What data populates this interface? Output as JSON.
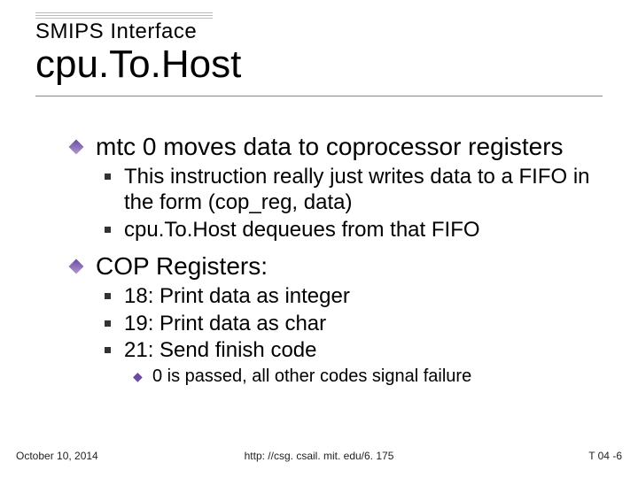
{
  "header": {
    "subtitle": "SMIPS Interface",
    "title": "cpu.To.Host"
  },
  "bullet1": {
    "text": "mtc 0 moves data to coprocessor registers",
    "sub": [
      "This instruction really just writes data to a FIFO in the form (cop_reg, data)",
      "cpu.To.Host dequeues from that FIFO"
    ]
  },
  "bullet2": {
    "text": "COP Registers:",
    "sub": [
      "18: Print data as integer",
      "19: Print data as char",
      "21: Send finish code"
    ],
    "subsub": [
      "0 is passed, all other codes signal failure"
    ]
  },
  "footer": {
    "date": "October 10, 2014",
    "url": "http: //csg. csail. mit. edu/6. 175",
    "page": "T 04 -6"
  },
  "style": {
    "diamond_color_a": "#6b4aa0",
    "diamond_color_b": "#b09ad0",
    "square_color": "#333333",
    "rule_color": "#888888",
    "header_rule_color": "#bbbbbb",
    "background": "#ffffff",
    "text_color": "#000000",
    "title_fontsize": 44,
    "subtitle_fontsize": 24,
    "lvl1_fontsize": 28,
    "lvl2_fontsize": 24,
    "lvl3_fontsize": 20,
    "footer_fontsize": 12
  }
}
